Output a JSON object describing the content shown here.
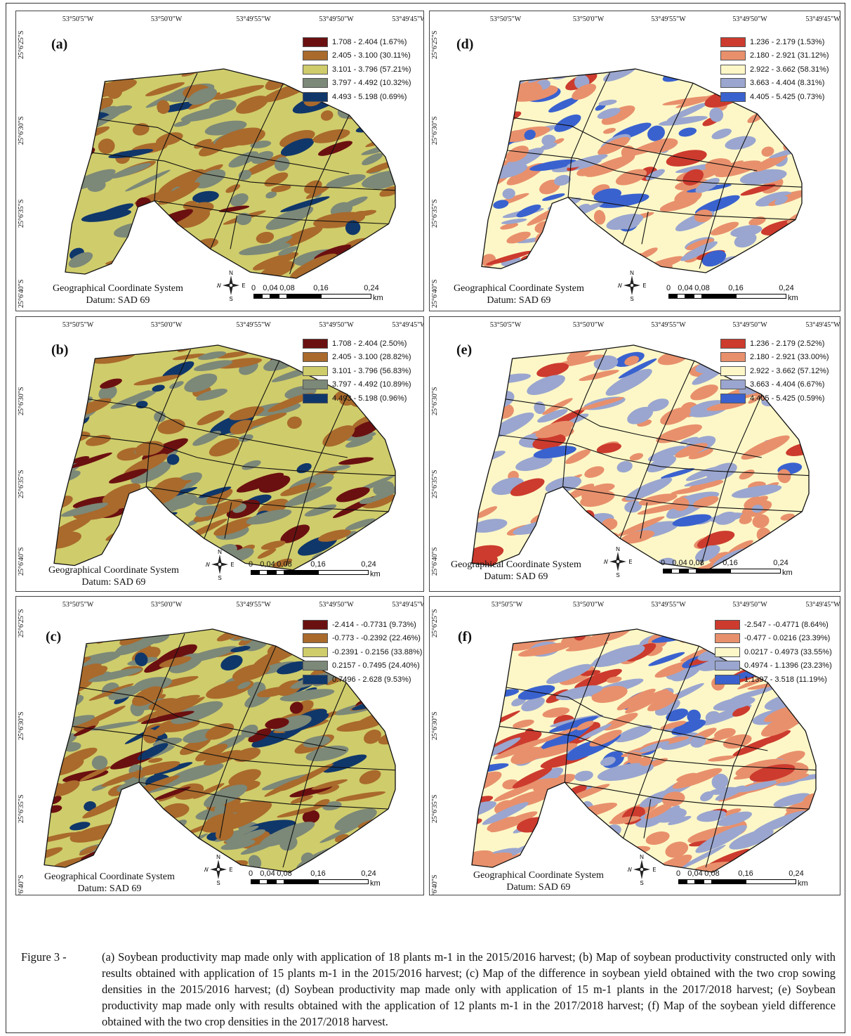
{
  "panels": [
    {
      "id": "a",
      "letter": "(a)",
      "lon_labels": [
        "53°50'5\"W",
        "53°50'0\"W",
        "53°49'55\"W",
        "53°49'50\"W",
        "53°49'45\"W"
      ],
      "lat_labels": [
        "25°6'25\"S",
        "25°6'30\"S",
        "25°6'35\"S",
        "25°6'40\"S"
      ],
      "palette": "soy",
      "legend": [
        {
          "label": "1.708 - 2.404 (1.67%)",
          "color": "#6b1010"
        },
        {
          "label": "2.405 - 3.100 (30.11%)",
          "color": "#a96a2c"
        },
        {
          "label": "3.101 - 3.796 (57.21%)",
          "color": "#cfcc6b"
        },
        {
          "label": "3.797 - 4.492 (10.32%)",
          "color": "#7c8878"
        },
        {
          "label": "4.493 - 5.198 (0.69%)",
          "color": "#10376a"
        }
      ],
      "coord_system": "Geographical Coordinate System",
      "datum": "Datum: SAD 69",
      "compass": {
        "n": "N",
        "s": "S",
        "e": "E",
        "w": "W"
      },
      "scale": {
        "ticks": [
          "0",
          "0,04",
          "0,08",
          "0,16",
          "0,24"
        ],
        "unit": "km"
      }
    },
    {
      "id": "d",
      "letter": "(d)",
      "lon_labels": [
        "53°50'5\"W",
        "53°50'0\"W",
        "53°49'55\"W",
        "53°49'50\"W",
        "53°49'45\"W"
      ],
      "lat_labels": [
        "25°6'25\"S",
        "25°6'30\"S",
        "25°6'35\"S",
        "25°6'40\"S"
      ],
      "palette": "rdbu",
      "legend": [
        {
          "label": "1.236 - 2.179 (1.53%)",
          "color": "#cc3b2e"
        },
        {
          "label": "2.180 - 2.921 (31.12%)",
          "color": "#e8906c"
        },
        {
          "label": "2.922 - 3.662 (58.31%)",
          "color": "#fdf7c7"
        },
        {
          "label": "3.663 - 4.404 (8.31%)",
          "color": "#9aa6cf"
        },
        {
          "label": "4.405 - 5.425 (0.73%)",
          "color": "#3a62cf"
        }
      ],
      "coord_system": "Geographical Coordinate System",
      "datum": "Datum: SAD 69",
      "compass": {
        "n": "N",
        "s": "S",
        "e": "E",
        "w": "W"
      },
      "scale": {
        "ticks": [
          "0",
          "0,04",
          "0,08",
          "0,16",
          "0,24"
        ],
        "unit": "km"
      }
    },
    {
      "id": "b",
      "letter": "(b)",
      "lon_labels": [
        "53°50'5\"W",
        "53°50'0\"W",
        "53°49'55\"W",
        "53°49'50\"W",
        "53°49'45\"W"
      ],
      "lat_labels": [
        "25°6'30\"S",
        "25°6'35\"S",
        "25°6'40\"S"
      ],
      "palette": "soy",
      "legend": [
        {
          "label": "1.708 - 2.404 (2.50%)",
          "color": "#6b1010"
        },
        {
          "label": "2.405 - 3.100 (28.82%)",
          "color": "#a96a2c"
        },
        {
          "label": "3.101 - 3.796 (56.83%)",
          "color": "#cfcc6b"
        },
        {
          "label": "3.797 - 4.492 (10.89%)",
          "color": "#7c8878"
        },
        {
          "label": "4.493 - 5.198 (0.96%)",
          "color": "#10376a"
        }
      ],
      "coord_system": "Geographical Coordinate System",
      "datum": "Datum: SAD 69",
      "compass": {
        "n": "N",
        "s": "S",
        "e": "E",
        "w": "W"
      },
      "scale": {
        "ticks": [
          "0",
          "0,04",
          "0,08",
          "0,16",
          "0,24"
        ],
        "unit": "km"
      }
    },
    {
      "id": "e",
      "letter": "(e)",
      "lon_labels": [
        "53°50'5\"W",
        "53°50'0\"W",
        "53°49'55\"W",
        "53°49'50\"W",
        "53°49'45\"W"
      ],
      "lat_labels": [
        "25°6'30\"S",
        "25°6'35\"S",
        "25°6'40\"S"
      ],
      "palette": "rdbu",
      "legend": [
        {
          "label": "1.236 - 2.179 (2.52%)",
          "color": "#cc3b2e"
        },
        {
          "label": "2.180 - 2.921 (33.00%)",
          "color": "#e8906c"
        },
        {
          "label": "2.922 - 3.662 (57.12%)",
          "color": "#fdf7c7"
        },
        {
          "label": "3.663 - 4.404 (6.67%)",
          "color": "#9aa6cf"
        },
        {
          "label": "4.405 - 5.425 (0.59%)",
          "color": "#3a62cf"
        }
      ],
      "coord_system": "Geographical Coordinate System",
      "datum": "Datum: SAD 69",
      "compass": {
        "n": "N",
        "s": "S",
        "e": "E",
        "w": "W"
      },
      "scale": {
        "ticks": [
          "0",
          "0,04",
          "0,08",
          "0,16",
          "0,24"
        ],
        "unit": "km"
      }
    },
    {
      "id": "c",
      "letter": "(c)",
      "lon_labels": [
        "53°50'5\"W",
        "53°50'0\"W",
        "53°49'55\"W",
        "53°49'50\"W",
        "53°49'45\"W"
      ],
      "lat_labels": [
        "25°6'25\"S",
        "25°6'30\"S",
        "25°6'35\"S",
        "25°6'40\"S"
      ],
      "palette": "soy",
      "legend": [
        {
          "label": "-2.414 - -0.7731 (9.73%)",
          "color": "#6b1010"
        },
        {
          "label": "-0.773 - -0.2392 (22.46%)",
          "color": "#a96a2c"
        },
        {
          "label": "-0.2391 - 0.2156 (33.88%)",
          "color": "#cfcc6b"
        },
        {
          "label": "0.2157 - 0.7495 (24.40%)",
          "color": "#7c8878"
        },
        {
          "label": "0.7496 - 2.628 (9.53%)",
          "color": "#10376a"
        }
      ],
      "coord_system": "Geographical Coordinate System",
      "datum": "Datum: SAD 69",
      "compass": {
        "n": "N",
        "s": "S",
        "e": "E",
        "w": "W"
      },
      "scale": {
        "ticks": [
          "0",
          "0,04",
          "0,08",
          "0,16",
          "0,24"
        ],
        "unit": "km"
      }
    },
    {
      "id": "f",
      "letter": "(f)",
      "lon_labels": [
        "53°50'5\"W",
        "53°50'0\"W",
        "53°49'55\"W",
        "53°49'50\"W",
        "53°49'45\"W"
      ],
      "lat_labels": [
        "25°6'25\"S",
        "25°6'30\"S",
        "25°6'35\"S",
        "25°6'40\"S"
      ],
      "palette": "rdbu",
      "legend": [
        {
          "label": "-2.547 - -0.4771 (8.64%)",
          "color": "#cc3b2e"
        },
        {
          "label": "-0.477 - 0.0216 (23.39%)",
          "color": "#e8906c"
        },
        {
          "label": "0.0217 - 0.4973 (33.55%)",
          "color": "#fdf7c7"
        },
        {
          "label": "0.4974 - 1.1396 (23.23%)",
          "color": "#9aa6cf"
        },
        {
          "label": "1.1397 - 3.518 (11.19%)",
          "color": "#3a62cf"
        }
      ],
      "coord_system": "Geographical Coordinate System",
      "datum": "Datum: SAD 69",
      "compass": {
        "n": "N",
        "s": "S",
        "e": "E",
        "w": "W"
      },
      "scale": {
        "ticks": [
          "0",
          "0,04",
          "0,08",
          "0,16",
          "0,24"
        ],
        "unit": "km"
      }
    }
  ],
  "caption": {
    "prefix": "Figure 3 -",
    "text": "(a) Soybean productivity map made only with application of 18 plants m-1 in the 2015/2016 harvest; (b) Map of soybean productivity constructed only with results obtained with  application of 15 plants m-1 in the 2015/2016 harvest; (c) Map of the difference in soybean yield obtained with the two crop sowing densities in the 2015/2016 harvest; (d) Soybean productivity map made only with application of 15 m-1 plants in the 2017/2018 harvest; (e) Soybean productivity map made only with results obtained with the application of 12 plants m-1 in the 2017/2018 harvest; (f) Map of the soybean yield difference obtained with the two crop densities in the 2017/2018 harvest."
  }
}
